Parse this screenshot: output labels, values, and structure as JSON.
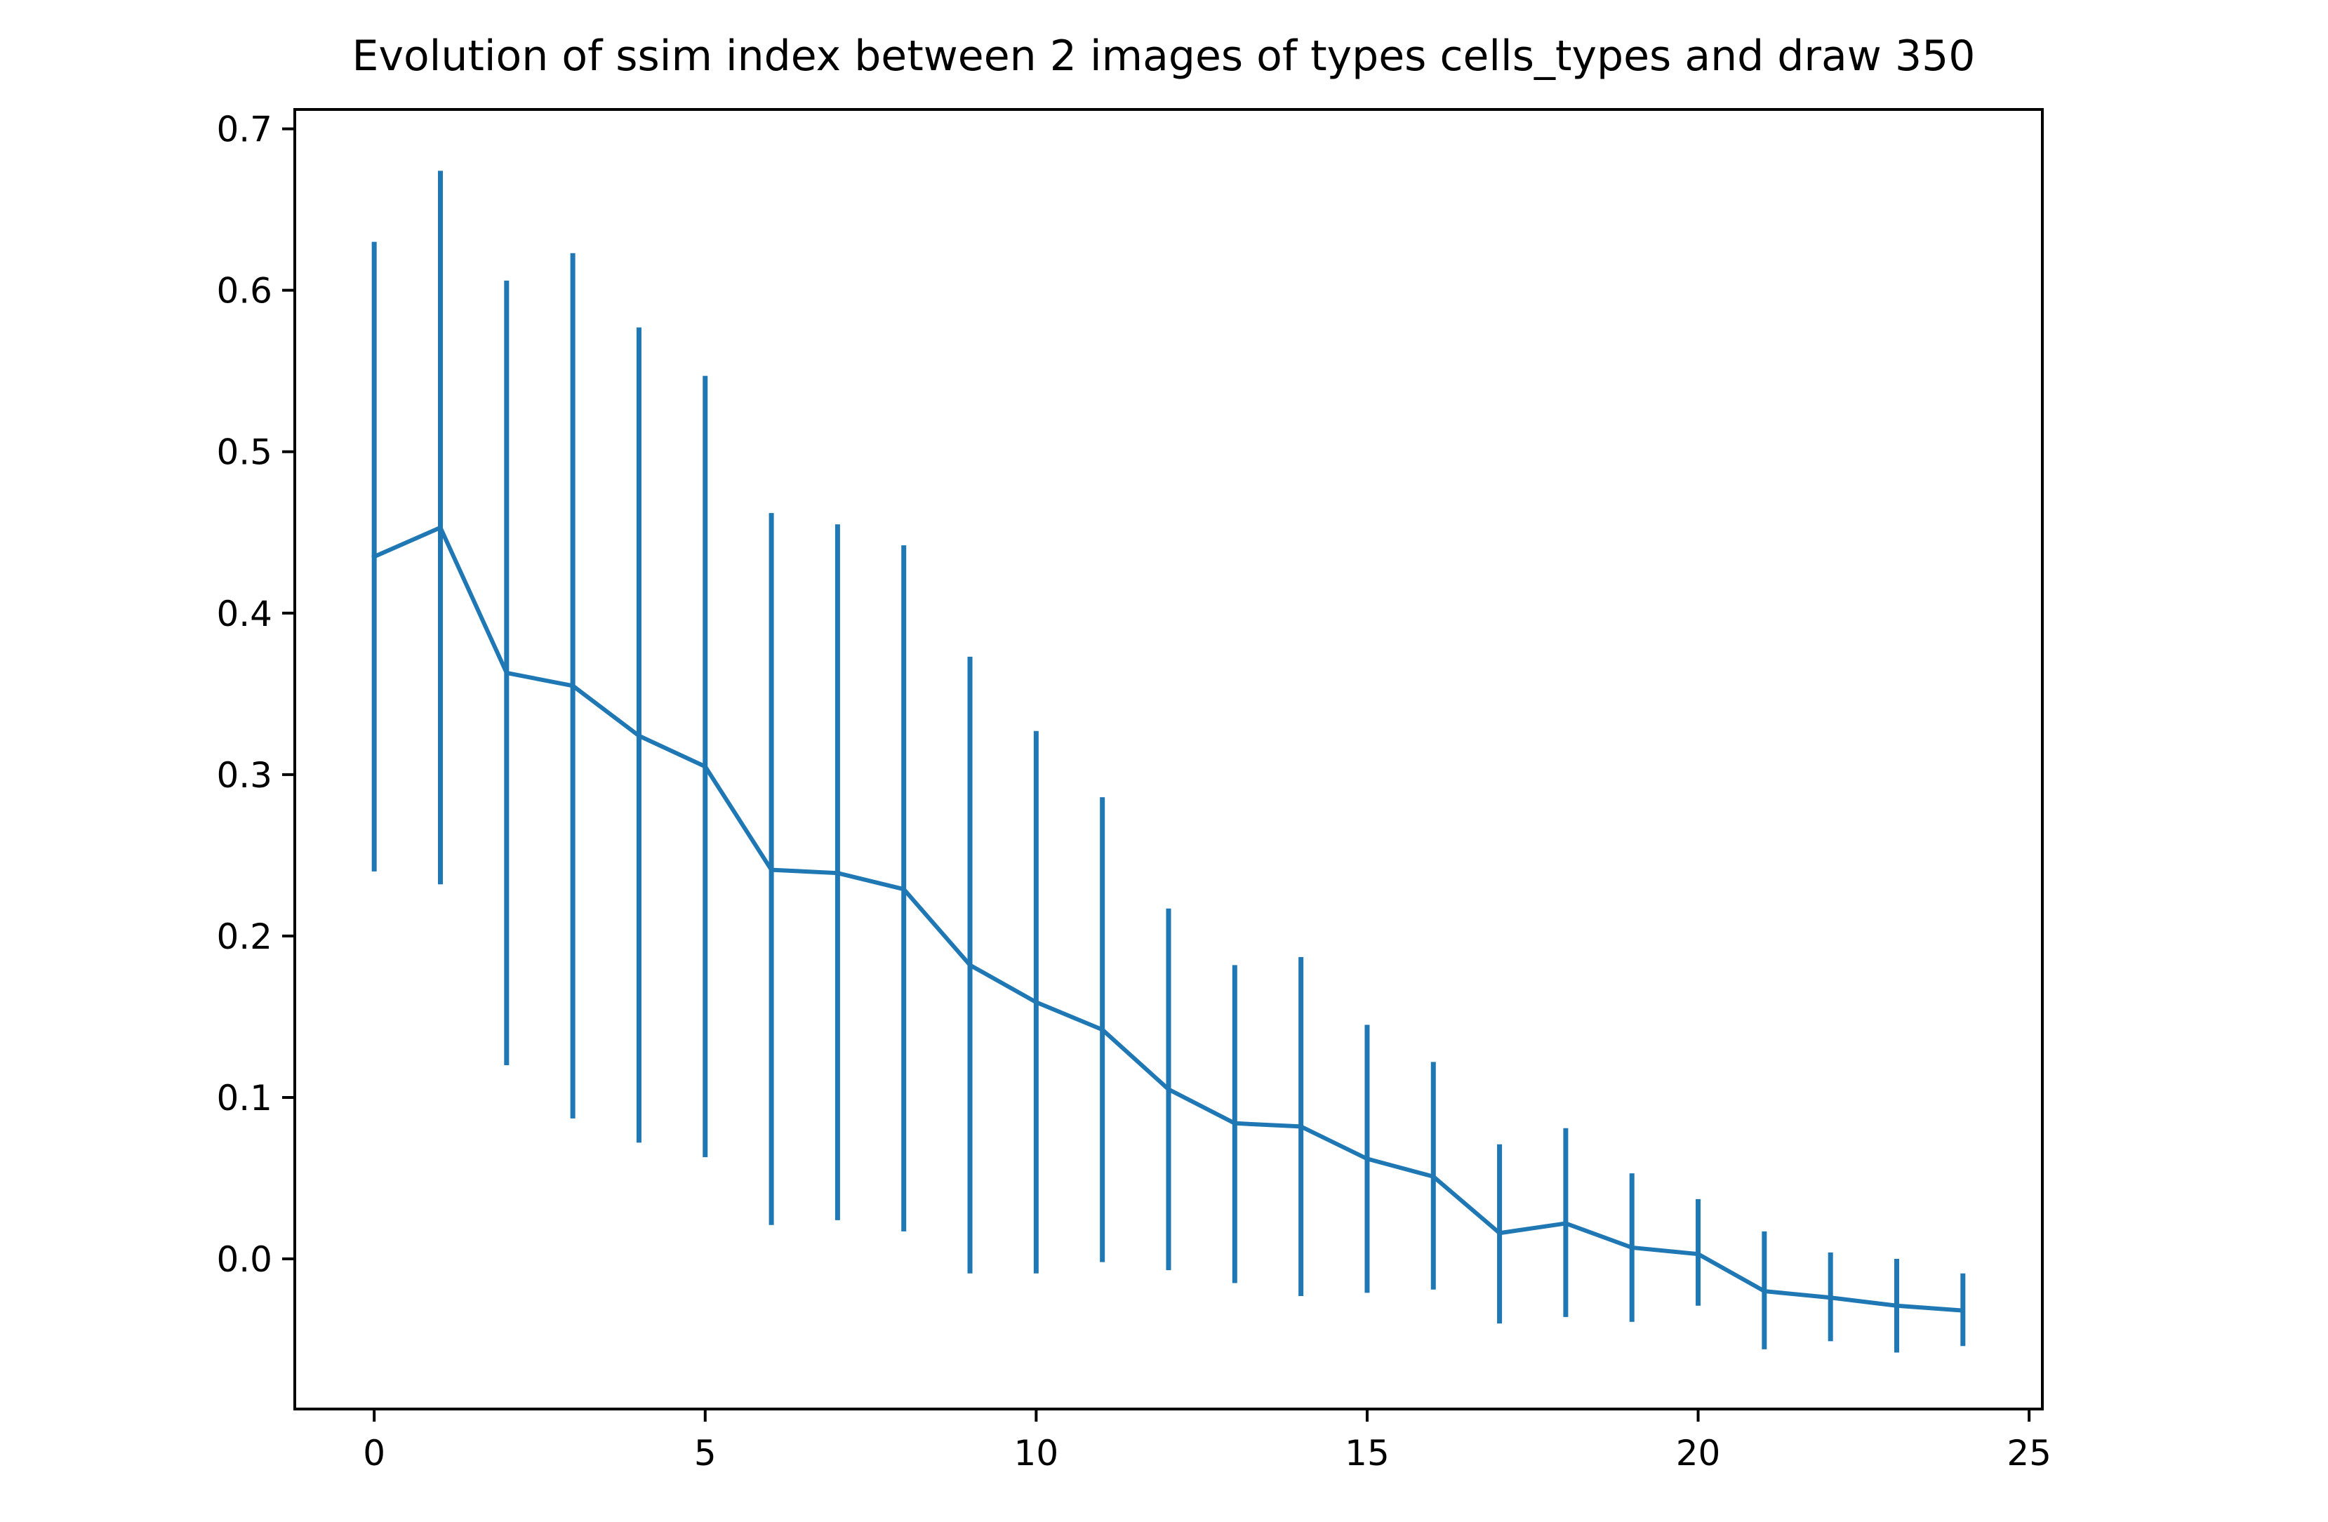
{
  "chart_data": {
    "type": "line",
    "title": "Evolution of ssim index between 2 images of types cells_types and draw 350",
    "xlabel": "",
    "ylabel": "",
    "xlim": [
      -1.2,
      25.2
    ],
    "ylim": [
      -0.093,
      0.712
    ],
    "x_ticks": [
      0,
      5,
      10,
      15,
      20,
      25
    ],
    "x_tick_labels": [
      "0",
      "5",
      "10",
      "15",
      "20",
      "25"
    ],
    "y_ticks": [
      0.0,
      0.1,
      0.2,
      0.3,
      0.4,
      0.5,
      0.6,
      0.7
    ],
    "y_tick_labels": [
      "0.0",
      "0.1",
      "0.2",
      "0.3",
      "0.4",
      "0.5",
      "0.6",
      "0.7"
    ],
    "grid": false,
    "legend": "none",
    "color": "#1f77b4",
    "series": [
      {
        "x": [
          0,
          1,
          2,
          3,
          4,
          5,
          6,
          7,
          8,
          9,
          10,
          11,
          12,
          13,
          14,
          15,
          16,
          17,
          18,
          19,
          20,
          21,
          22,
          23,
          24
        ],
        "y": [
          0.435,
          0.453,
          0.363,
          0.355,
          0.324,
          0.305,
          0.241,
          0.239,
          0.229,
          0.182,
          0.159,
          0.142,
          0.105,
          0.084,
          0.082,
          0.062,
          0.051,
          0.016,
          0.022,
          0.007,
          0.003,
          -0.02,
          -0.024,
          -0.029,
          -0.032
        ],
        "err_low": [
          0.24,
          0.232,
          0.12,
          0.087,
          0.072,
          0.063,
          0.021,
          0.024,
          0.017,
          -0.009,
          -0.009,
          -0.002,
          -0.007,
          -0.015,
          -0.023,
          -0.021,
          -0.019,
          -0.04,
          -0.036,
          -0.039,
          -0.029,
          -0.056,
          -0.051,
          -0.058,
          -0.054
        ],
        "err_high": [
          0.63,
          0.674,
          0.606,
          0.623,
          0.577,
          0.547,
          0.462,
          0.455,
          0.442,
          0.373,
          0.327,
          0.286,
          0.217,
          0.182,
          0.187,
          0.145,
          0.122,
          0.071,
          0.081,
          0.053,
          0.037,
          0.017,
          0.004,
          0.0,
          -0.009
        ]
      }
    ]
  }
}
